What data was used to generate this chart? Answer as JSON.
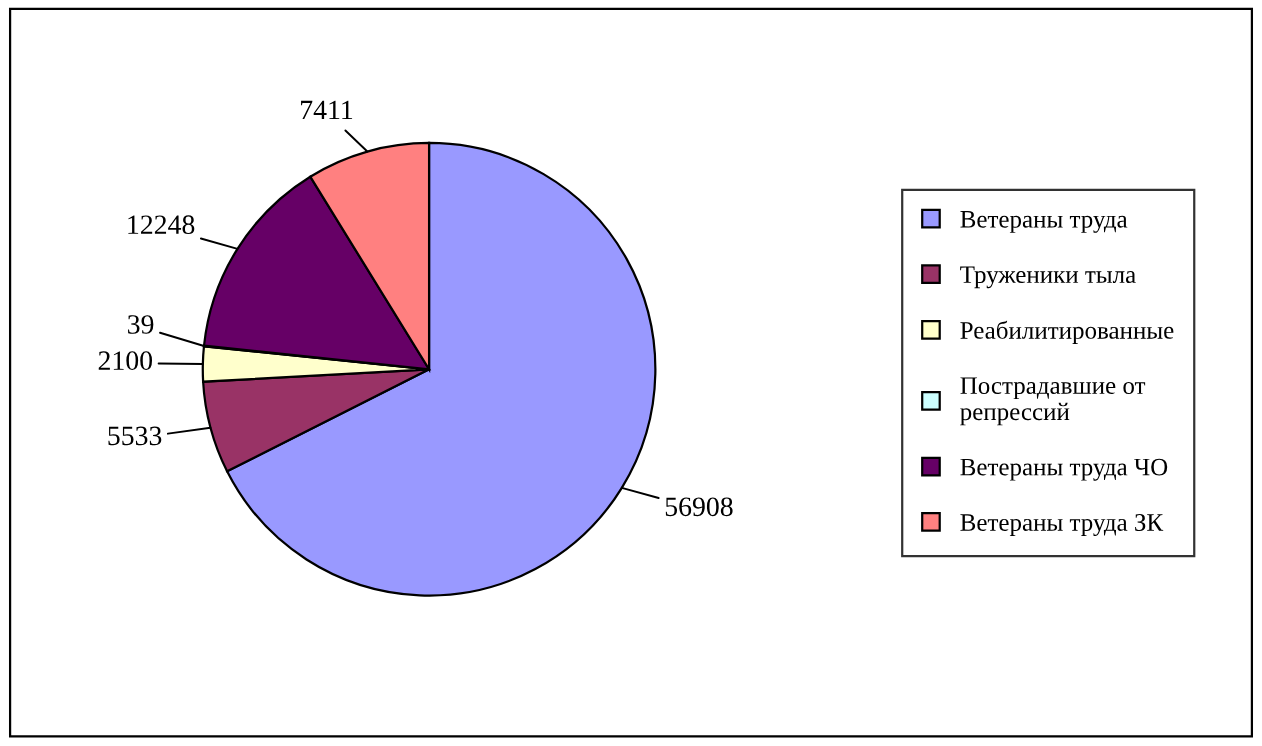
{
  "chart_data": {
    "type": "pie",
    "categories": [
      "Ветераны труда",
      "Труженики тыла",
      "Реабилитированные",
      "Пострадавшие от репрессий",
      "Ветераны труда ЧО",
      "Ветераны труда ЗК"
    ],
    "values": [
      56908,
      5533,
      2100,
      39,
      12248,
      7411
    ],
    "colors": [
      "#9999ff",
      "#993366",
      "#ffffcc",
      "#ccffff",
      "#660066",
      "#ff8080"
    ],
    "data_labels": true,
    "legend": "right"
  }
}
